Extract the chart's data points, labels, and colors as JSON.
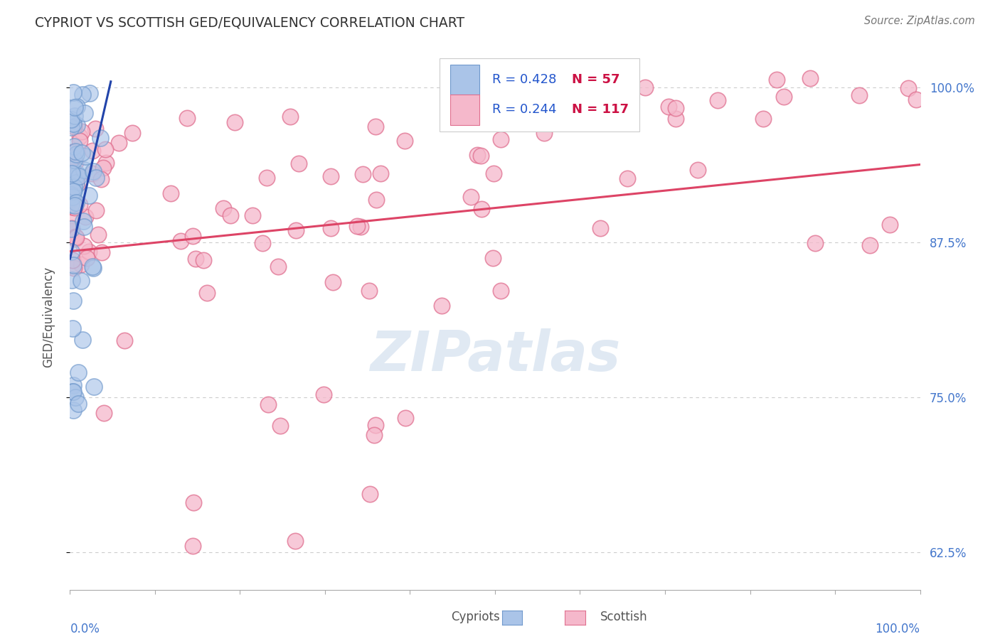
{
  "title": "CYPRIOT VS SCOTTISH GED/EQUIVALENCY CORRELATION CHART",
  "source": "Source: ZipAtlas.com",
  "ylabel": "GED/Equivalency",
  "xlim": [
    0.0,
    1.0
  ],
  "ylim": [
    0.595,
    1.035
  ],
  "yticks": [
    0.625,
    0.75,
    0.875,
    1.0
  ],
  "ytick_labels": [
    "62.5%",
    "75.0%",
    "87.5%",
    "100.0%"
  ],
  "cypriot_color": "#aac4e8",
  "cypriot_edge": "#7099cc",
  "scottish_color": "#f5b8cb",
  "scottish_edge": "#e07090",
  "cypriot_R": 0.428,
  "cypriot_N": 57,
  "scottish_R": 0.244,
  "scottish_N": 117,
  "legend_R_color": "#2255cc",
  "legend_N_color": "#cc1144",
  "background_color": "#ffffff",
  "grid_color": "#cccccc",
  "title_color": "#333333",
  "axis_label_color": "#4477cc",
  "watermark": "ZIPatlas",
  "cypriot_trendline_color": "#2244aa",
  "scottish_trendline_color": "#dd4466",
  "scottish_trend_x0": 0.0,
  "scottish_trend_x1": 1.0,
  "scottish_trend_y0": 0.868,
  "scottish_trend_y1": 0.938,
  "cypriot_trend_x0": 0.0,
  "cypriot_trend_x1": 0.048,
  "cypriot_trend_y0": 0.862,
  "cypriot_trend_y1": 1.005
}
